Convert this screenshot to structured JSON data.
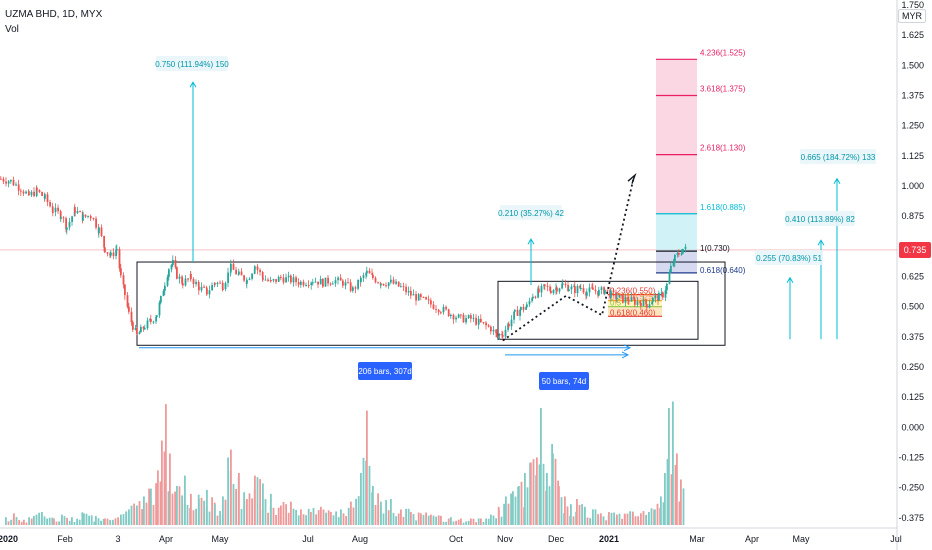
{
  "header": {
    "title": "UZMA BHD, 1D, MYX",
    "volume_label": "Vol",
    "currency": "MYR"
  },
  "price_tag": {
    "value": "0.735",
    "color": "#f23645"
  },
  "colors": {
    "up": "#26a69a",
    "down": "#ef5350",
    "accent": "#00bcd4",
    "range_blue": "#2962ff"
  },
  "chart_data": {
    "type": "candlestick",
    "x_ticks": [
      "2020",
      "Feb",
      "3",
      "Apr",
      "May",
      "Jul",
      "Aug",
      "Oct",
      "Nov",
      "Dec",
      "2021",
      "Mar",
      "Apr",
      "May",
      "Jul"
    ],
    "y_ticks": [
      "1.750",
      "1.625",
      "1.500",
      "1.375",
      "1.250",
      "1.125",
      "1.000",
      "0.875",
      "0.750",
      "0.625",
      "0.500",
      "0.375",
      "0.250",
      "0.125",
      "0.000",
      "-0.125",
      "-0.250",
      "-0.375"
    ],
    "ylim": [
      -0.4,
      1.78
    ],
    "price_path": [
      {
        "x": 0,
        "y": 1.03
      },
      {
        "x": 10,
        "y": 1.02
      },
      {
        "x": 20,
        "y": 0.99
      },
      {
        "x": 28,
        "y": 0.96
      },
      {
        "x": 36,
        "y": 0.98
      },
      {
        "x": 44,
        "y": 0.95
      },
      {
        "x": 52,
        "y": 0.9
      },
      {
        "x": 60,
        "y": 0.88
      },
      {
        "x": 66,
        "y": 0.83
      },
      {
        "x": 74,
        "y": 0.9
      },
      {
        "x": 82,
        "y": 0.87
      },
      {
        "x": 90,
        "y": 0.88
      },
      {
        "x": 98,
        "y": 0.82
      },
      {
        "x": 104,
        "y": 0.74
      },
      {
        "x": 110,
        "y": 0.71
      },
      {
        "x": 116,
        "y": 0.74
      },
      {
        "x": 120,
        "y": 0.62
      },
      {
        "x": 124,
        "y": 0.55
      },
      {
        "x": 128,
        "y": 0.47
      },
      {
        "x": 132,
        "y": 0.42
      },
      {
        "x": 136,
        "y": 0.38
      },
      {
        "x": 140,
        "y": 0.4
      },
      {
        "x": 144,
        "y": 0.42
      },
      {
        "x": 150,
        "y": 0.44
      },
      {
        "x": 156,
        "y": 0.47
      },
      {
        "x": 160,
        "y": 0.53
      },
      {
        "x": 164,
        "y": 0.6
      },
      {
        "x": 168,
        "y": 0.66
      },
      {
        "x": 172,
        "y": 0.68
      },
      {
        "x": 176,
        "y": 0.63
      },
      {
        "x": 182,
        "y": 0.6
      },
      {
        "x": 190,
        "y": 0.62
      },
      {
        "x": 198,
        "y": 0.58
      },
      {
        "x": 206,
        "y": 0.56
      },
      {
        "x": 214,
        "y": 0.6
      },
      {
        "x": 222,
        "y": 0.59
      },
      {
        "x": 230,
        "y": 0.66
      },
      {
        "x": 238,
        "y": 0.63
      },
      {
        "x": 246,
        "y": 0.61
      },
      {
        "x": 254,
        "y": 0.67
      },
      {
        "x": 262,
        "y": 0.62
      },
      {
        "x": 270,
        "y": 0.6
      },
      {
        "x": 280,
        "y": 0.62
      },
      {
        "x": 290,
        "y": 0.61
      },
      {
        "x": 300,
        "y": 0.6
      },
      {
        "x": 312,
        "y": 0.61
      },
      {
        "x": 322,
        "y": 0.6
      },
      {
        "x": 332,
        "y": 0.61
      },
      {
        "x": 342,
        "y": 0.6
      },
      {
        "x": 352,
        "y": 0.57
      },
      {
        "x": 360,
        "y": 0.61
      },
      {
        "x": 366,
        "y": 0.64
      },
      {
        "x": 372,
        "y": 0.62
      },
      {
        "x": 380,
        "y": 0.6
      },
      {
        "x": 390,
        "y": 0.6
      },
      {
        "x": 400,
        "y": 0.58
      },
      {
        "x": 410,
        "y": 0.55
      },
      {
        "x": 420,
        "y": 0.53
      },
      {
        "x": 430,
        "y": 0.51
      },
      {
        "x": 440,
        "y": 0.49
      },
      {
        "x": 450,
        "y": 0.47
      },
      {
        "x": 460,
        "y": 0.45
      },
      {
        "x": 470,
        "y": 0.45
      },
      {
        "x": 480,
        "y": 0.43
      },
      {
        "x": 490,
        "y": 0.41
      },
      {
        "x": 496,
        "y": 0.38
      },
      {
        "x": 502,
        "y": 0.39
      },
      {
        "x": 508,
        "y": 0.43
      },
      {
        "x": 514,
        "y": 0.47
      },
      {
        "x": 520,
        "y": 0.49
      },
      {
        "x": 526,
        "y": 0.5
      },
      {
        "x": 532,
        "y": 0.55
      },
      {
        "x": 538,
        "y": 0.56
      },
      {
        "x": 544,
        "y": 0.58
      },
      {
        "x": 550,
        "y": 0.57
      },
      {
        "x": 556,
        "y": 0.58
      },
      {
        "x": 562,
        "y": 0.59
      },
      {
        "x": 568,
        "y": 0.58
      },
      {
        "x": 574,
        "y": 0.57
      },
      {
        "x": 580,
        "y": 0.58
      },
      {
        "x": 586,
        "y": 0.56
      },
      {
        "x": 592,
        "y": 0.57
      },
      {
        "x": 598,
        "y": 0.56
      },
      {
        "x": 604,
        "y": 0.57
      },
      {
        "x": 610,
        "y": 0.55
      },
      {
        "x": 616,
        "y": 0.54
      },
      {
        "x": 622,
        "y": 0.53
      },
      {
        "x": 628,
        "y": 0.53
      },
      {
        "x": 634,
        "y": 0.52
      },
      {
        "x": 640,
        "y": 0.52
      },
      {
        "x": 646,
        "y": 0.51
      },
      {
        "x": 652,
        "y": 0.53
      },
      {
        "x": 658,
        "y": 0.54
      },
      {
        "x": 662,
        "y": 0.55
      },
      {
        "x": 666,
        "y": 0.59
      },
      {
        "x": 670,
        "y": 0.66
      },
      {
        "x": 674,
        "y": 0.7
      },
      {
        "x": 678,
        "y": 0.72
      },
      {
        "x": 682,
        "y": 0.74
      },
      {
        "x": 686,
        "y": 0.735
      }
    ],
    "volume_path": [
      {
        "x": 5,
        "v": 0.06
      },
      {
        "x": 13,
        "v": 0.09
      },
      {
        "x": 23,
        "v": 0.04
      },
      {
        "x": 33,
        "v": 0.07
      },
      {
        "x": 41,
        "v": 0.1
      },
      {
        "x": 53,
        "v": 0.05
      },
      {
        "x": 61,
        "v": 0.08
      },
      {
        "x": 71,
        "v": 0.06
      },
      {
        "x": 83,
        "v": 0.09
      },
      {
        "x": 95,
        "v": 0.07
      },
      {
        "x": 104,
        "v": 0.05
      },
      {
        "x": 112,
        "v": 0.04
      },
      {
        "x": 120,
        "v": 0.08
      },
      {
        "x": 128,
        "v": 0.12
      },
      {
        "x": 136,
        "v": 0.15
      },
      {
        "x": 143,
        "v": 0.22
      },
      {
        "x": 150,
        "v": 0.28
      },
      {
        "x": 157,
        "v": 0.42
      },
      {
        "x": 161,
        "v": 0.65
      },
      {
        "x": 165,
        "v": 0.93
      },
      {
        "x": 169,
        "v": 0.55
      },
      {
        "x": 176,
        "v": 0.3
      },
      {
        "x": 184,
        "v": 0.38
      },
      {
        "x": 190,
        "v": 0.24
      },
      {
        "x": 198,
        "v": 0.2
      },
      {
        "x": 206,
        "v": 0.27
      },
      {
        "x": 214,
        "v": 0.16
      },
      {
        "x": 222,
        "v": 0.22
      },
      {
        "x": 230,
        "v": 0.58
      },
      {
        "x": 238,
        "v": 0.4
      },
      {
        "x": 246,
        "v": 0.2
      },
      {
        "x": 254,
        "v": 0.38
      },
      {
        "x": 262,
        "v": 0.32
      },
      {
        "x": 270,
        "v": 0.24
      },
      {
        "x": 280,
        "v": 0.15
      },
      {
        "x": 290,
        "v": 0.18
      },
      {
        "x": 300,
        "v": 0.12
      },
      {
        "x": 310,
        "v": 0.1
      },
      {
        "x": 320,
        "v": 0.14
      },
      {
        "x": 330,
        "v": 0.1
      },
      {
        "x": 340,
        "v": 0.12
      },
      {
        "x": 350,
        "v": 0.18
      },
      {
        "x": 360,
        "v": 0.4
      },
      {
        "x": 366,
        "v": 0.88
      },
      {
        "x": 372,
        "v": 0.3
      },
      {
        "x": 380,
        "v": 0.18
      },
      {
        "x": 390,
        "v": 0.2
      },
      {
        "x": 400,
        "v": 0.12
      },
      {
        "x": 410,
        "v": 0.1
      },
      {
        "x": 420,
        "v": 0.09
      },
      {
        "x": 430,
        "v": 0.08
      },
      {
        "x": 440,
        "v": 0.07
      },
      {
        "x": 450,
        "v": 0.06
      },
      {
        "x": 460,
        "v": 0.05
      },
      {
        "x": 470,
        "v": 0.05
      },
      {
        "x": 480,
        "v": 0.05
      },
      {
        "x": 490,
        "v": 0.08
      },
      {
        "x": 498,
        "v": 0.12
      },
      {
        "x": 505,
        "v": 0.22
      },
      {
        "x": 512,
        "v": 0.26
      },
      {
        "x": 518,
        "v": 0.3
      },
      {
        "x": 524,
        "v": 0.4
      },
      {
        "x": 530,
        "v": 0.48
      },
      {
        "x": 536,
        "v": 0.52
      },
      {
        "x": 540,
        "v": 0.9
      },
      {
        "x": 546,
        "v": 0.4
      },
      {
        "x": 552,
        "v": 0.55
      },
      {
        "x": 558,
        "v": 0.3
      },
      {
        "x": 564,
        "v": 0.22
      },
      {
        "x": 570,
        "v": 0.16
      },
      {
        "x": 576,
        "v": 0.2
      },
      {
        "x": 584,
        "v": 0.14
      },
      {
        "x": 592,
        "v": 0.12
      },
      {
        "x": 600,
        "v": 0.09
      },
      {
        "x": 608,
        "v": 0.1
      },
      {
        "x": 616,
        "v": 0.08
      },
      {
        "x": 624,
        "v": 0.08
      },
      {
        "x": 632,
        "v": 0.1
      },
      {
        "x": 640,
        "v": 0.09
      },
      {
        "x": 648,
        "v": 0.1
      },
      {
        "x": 654,
        "v": 0.12
      },
      {
        "x": 660,
        "v": 0.22
      },
      {
        "x": 664,
        "v": 0.4
      },
      {
        "x": 668,
        "v": 0.9
      },
      {
        "x": 672,
        "v": 0.95
      },
      {
        "x": 676,
        "v": 0.55
      },
      {
        "x": 680,
        "v": 0.35
      },
      {
        "x": 684,
        "v": 0.2
      }
    ],
    "annotations": {
      "measure_labels": [
        {
          "text": "0.750 (111.94%) 150"
        },
        {
          "text": "0.210 (35.27%) 42"
        },
        {
          "text": "0.665 (184.72%) 133"
        },
        {
          "text": "0.410 (113.89%) 82"
        },
        {
          "text": "0.255 (70.83%) 51"
        }
      ],
      "range_labels": [
        {
          "text": "206 bars, 307d"
        },
        {
          "text": "50 bars, 74d"
        }
      ],
      "fib_ext": [
        {
          "label": "4.236(1.525)",
          "color": "#e91e63"
        },
        {
          "label": "3.618(1.375)",
          "color": "#e91e63"
        },
        {
          "label": "2.618(1.130)",
          "color": "#e91e63"
        },
        {
          "label": "1.618(0.885)",
          "color": "#00bcd4"
        },
        {
          "label": "1(0.730)",
          "color": "#131722"
        },
        {
          "label": "0.618(0.640)",
          "color": "#1e3a8a"
        }
      ],
      "fib_ret": [
        {
          "label": "0.236(0.550)",
          "color": "#e53935"
        },
        {
          "label": "0.382(0.525)",
          "color": "#f9a825"
        },
        {
          "label": "0.5",
          "color": "#8bc34a"
        },
        {
          "label": "0.618(0.460)",
          "color": "#e53935"
        }
      ]
    }
  }
}
